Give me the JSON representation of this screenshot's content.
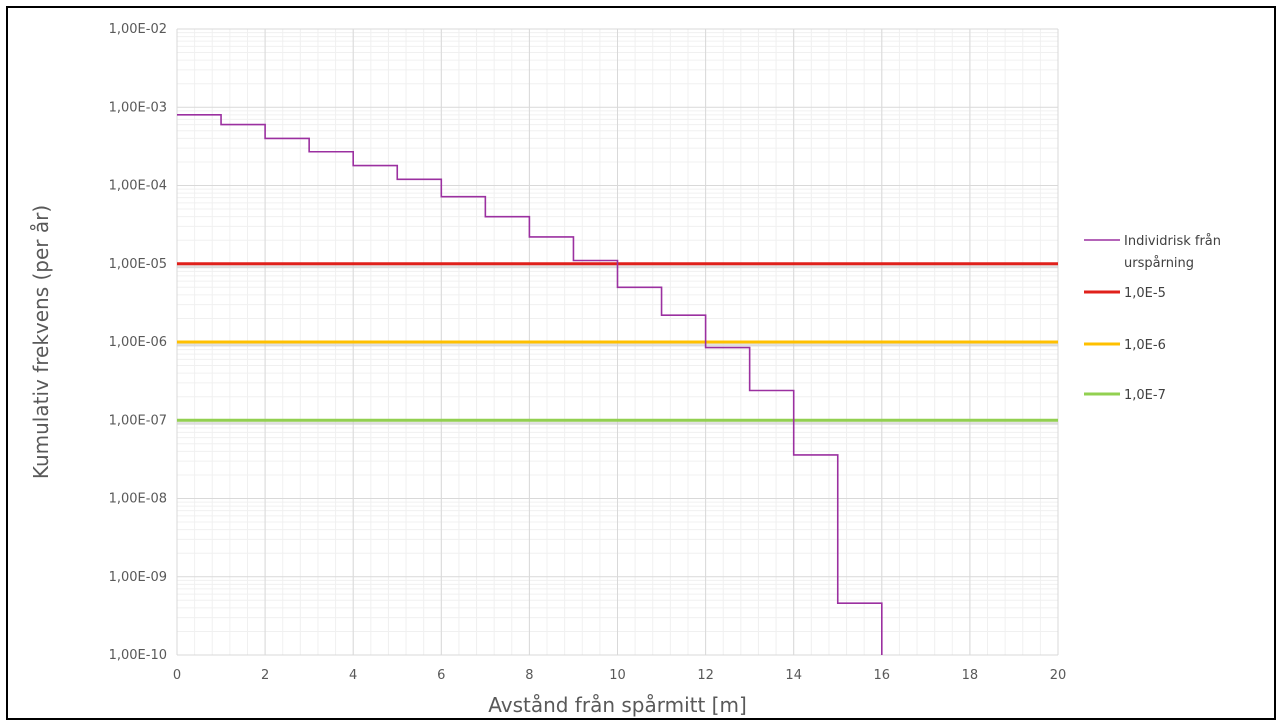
{
  "chart_data": {
    "type": "line",
    "xlabel": "Avstånd från spårmitt [m]",
    "ylabel": "Kumulativ frekvens (per år)",
    "xlim": [
      0,
      20
    ],
    "ylim": [
      1e-10,
      0.01
    ],
    "yscale": "log",
    "grid": true,
    "legend_position": "right",
    "x_ticks": [
      "0",
      "2",
      "4",
      "6",
      "8",
      "10",
      "12",
      "14",
      "16",
      "18",
      "20"
    ],
    "y_ticks": [
      "1,00E-02",
      "1,00E-03",
      "1,00E-04",
      "1,00E-05",
      "1,00E-06",
      "1,00E-07",
      "1,00E-08",
      "1,00E-09",
      "1,00E-10"
    ],
    "series": [
      {
        "name": "Individrisk från urspårning",
        "color": "#9b30a0",
        "style": "step",
        "x": [
          0,
          1,
          2,
          3,
          4,
          5,
          6,
          7,
          8,
          9,
          10,
          11,
          12,
          13,
          14,
          15,
          16
        ],
        "y": [
          0.0008,
          0.0006,
          0.0004,
          0.00027,
          0.00018,
          0.00012,
          7.2e-05,
          4e-05,
          2.2e-05,
          1.1e-05,
          5e-06,
          2.2e-06,
          8.5e-07,
          2.4e-07,
          3.6e-08,
          4.6e-10,
          1e-10
        ]
      },
      {
        "name": "1,0E-5",
        "color": "#e0201b",
        "style": "hline",
        "x": [
          0,
          20
        ],
        "y": [
          1e-05,
          1e-05
        ]
      },
      {
        "name": "1,0E-6",
        "color": "#ffc000",
        "style": "hline",
        "x": [
          0,
          20
        ],
        "y": [
          1e-06,
          1e-06
        ]
      },
      {
        "name": "1,0E-7",
        "color": "#92d050",
        "style": "hline",
        "x": [
          0,
          20
        ],
        "y": [
          1e-07,
          1e-07
        ]
      }
    ],
    "legend": {
      "entries": [
        {
          "lines": [
            "Individrisk från",
            "urspårning"
          ],
          "color": "#9b30a0"
        },
        {
          "lines": [
            "1,0E-5"
          ],
          "color": "#e0201b"
        },
        {
          "lines": [
            "1,0E-6"
          ],
          "color": "#ffc000"
        },
        {
          "lines": [
            "1,0E-7"
          ],
          "color": "#92d050"
        }
      ]
    }
  }
}
